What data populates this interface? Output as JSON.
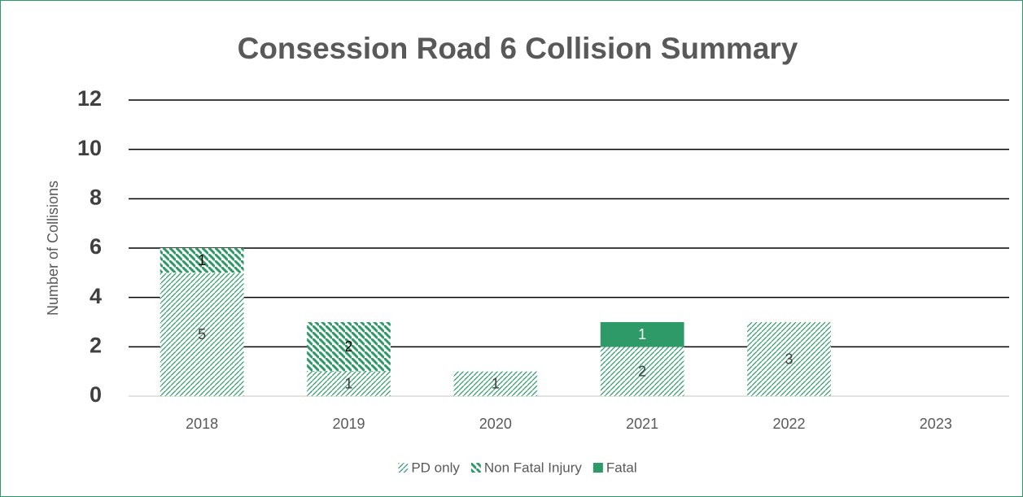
{
  "chart_data": {
    "type": "stacked-bar",
    "title": "Consession Road 6 Collision Summary",
    "y_axis_label": "Number of Collisions",
    "categories": [
      "2018",
      "2019",
      "2020",
      "2021",
      "2022",
      "2023"
    ],
    "series": [
      {
        "name": "PD only",
        "color": "#2e9a68",
        "pattern": "light-upward-diagonal",
        "values": [
          5,
          1,
          1,
          2,
          3,
          0
        ]
      },
      {
        "name": "Non Fatal Injury",
        "color": "#2e9a68",
        "pattern": "wide-downward-diagonal",
        "values": [
          1,
          2,
          0,
          0,
          0,
          0
        ]
      },
      {
        "name": "Fatal",
        "color": "#2e9a68",
        "pattern": "solid",
        "values": [
          0,
          0,
          0,
          1,
          0,
          0
        ]
      }
    ],
    "ylim": [
      0,
      12
    ],
    "yticks": [
      0,
      2,
      4,
      6,
      8,
      10,
      12
    ],
    "grid": true,
    "legend": "bottom"
  }
}
